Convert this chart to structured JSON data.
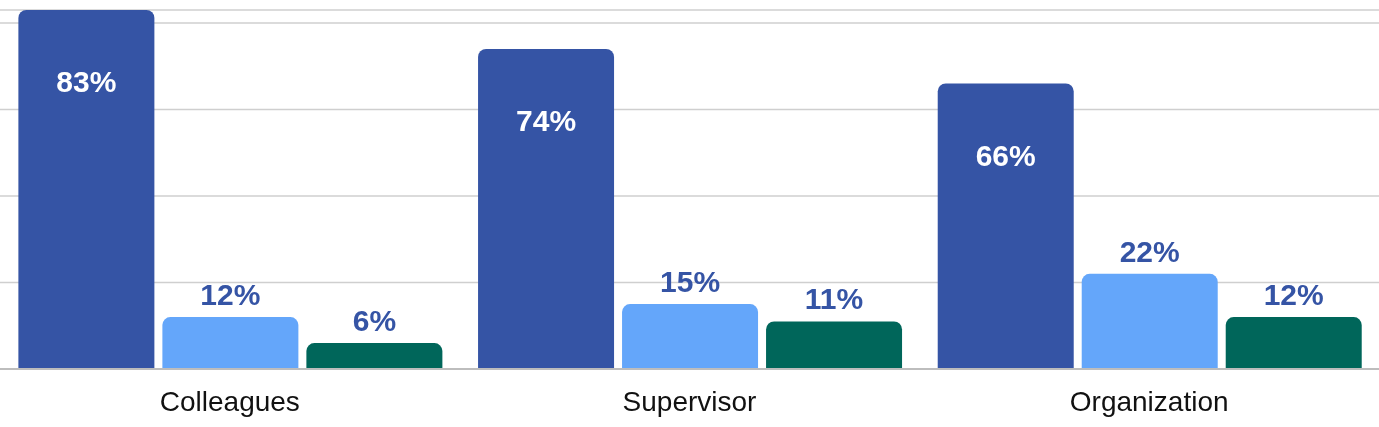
{
  "chart_data": {
    "type": "bar",
    "categories": [
      "Colleagues",
      "Supervisor",
      "Organization"
    ],
    "series": [
      {
        "color": "#3554a5",
        "values": [
          83,
          74,
          66
        ],
        "value_labels": [
          "83%",
          "74%",
          "66%"
        ]
      },
      {
        "color": "#64a6fa",
        "values": [
          12,
          15,
          22
        ],
        "value_labels": [
          "12%",
          "15%",
          "22%"
        ]
      },
      {
        "color": "#00665a",
        "values": [
          6,
          11,
          12
        ],
        "value_labels": [
          "6%",
          "11%",
          "12%"
        ]
      }
    ],
    "ylim": [
      0,
      83
    ],
    "yticks": [
      {
        "value": 0,
        "label": null
      },
      {
        "value": 20,
        "label": null
      },
      {
        "value": 40,
        "label": null
      },
      {
        "value": 60,
        "label": null
      },
      {
        "value": 80,
        "label": null
      }
    ],
    "grid": "y",
    "tick_labels": "x",
    "legend": false
  }
}
